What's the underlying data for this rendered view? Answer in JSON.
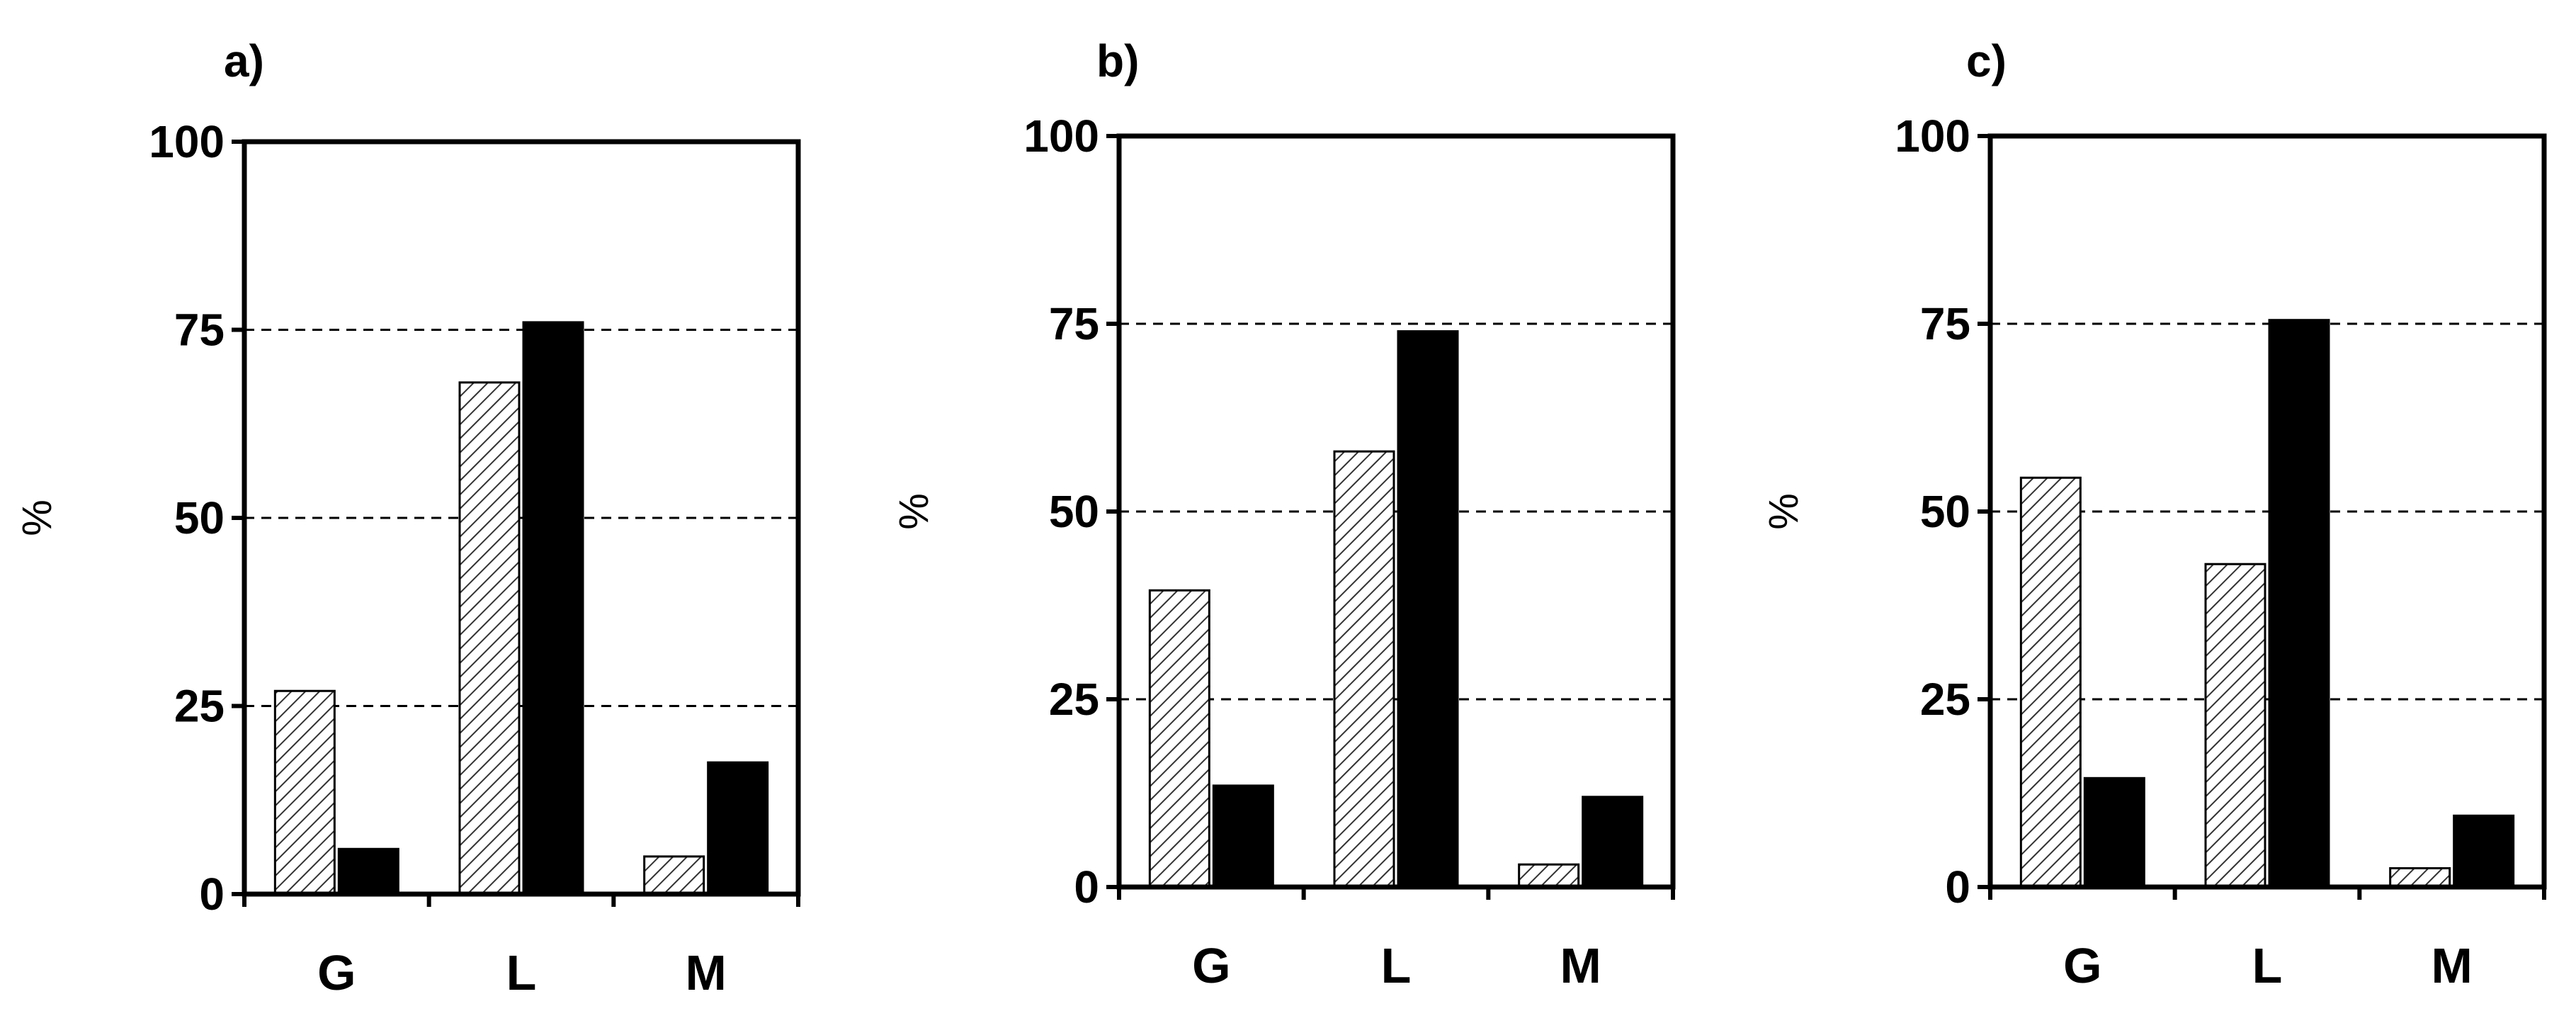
{
  "chart_data": [
    {
      "type": "bar",
      "panel_label": "a)",
      "categories": [
        "G",
        "L",
        "M"
      ],
      "ylabel": "%",
      "ylim": [
        0,
        100
      ],
      "yticks": [
        "0",
        "25",
        "50",
        "75",
        "100"
      ],
      "grid": "horizontal dashed at 25, 50, 75",
      "series": [
        {
          "style": "hatched",
          "color": "#ffffff",
          "values": [
            27,
            68,
            5
          ]
        },
        {
          "style": "solid",
          "color": "#000000",
          "values": [
            6,
            76,
            17.5
          ]
        }
      ]
    },
    {
      "type": "bar",
      "panel_label": "b)",
      "categories": [
        "G",
        "L",
        "M"
      ],
      "ylabel": "%",
      "ylim": [
        0,
        100
      ],
      "yticks": [
        "0",
        "25",
        "50",
        "75",
        "100"
      ],
      "grid": "horizontal dashed at 25, 50, 75",
      "series": [
        {
          "style": "hatched",
          "color": "#ffffff",
          "values": [
            39.5,
            58,
            3
          ]
        },
        {
          "style": "solid",
          "color": "#000000",
          "values": [
            13.5,
            74,
            12
          ]
        }
      ]
    },
    {
      "type": "bar",
      "panel_label": "c)",
      "categories": [
        "G",
        "L",
        "M"
      ],
      "ylabel": "%",
      "ylim": [
        0,
        100
      ],
      "yticks": [
        "0",
        "25",
        "50",
        "75",
        "100"
      ],
      "grid": "horizontal dashed at 25, 50, 75",
      "series": [
        {
          "style": "hatched",
          "color": "#ffffff",
          "values": [
            54.5,
            43,
            2.5
          ]
        },
        {
          "style": "solid",
          "color": "#000000",
          "values": [
            14.5,
            75.5,
            9.5
          ]
        }
      ]
    }
  ]
}
